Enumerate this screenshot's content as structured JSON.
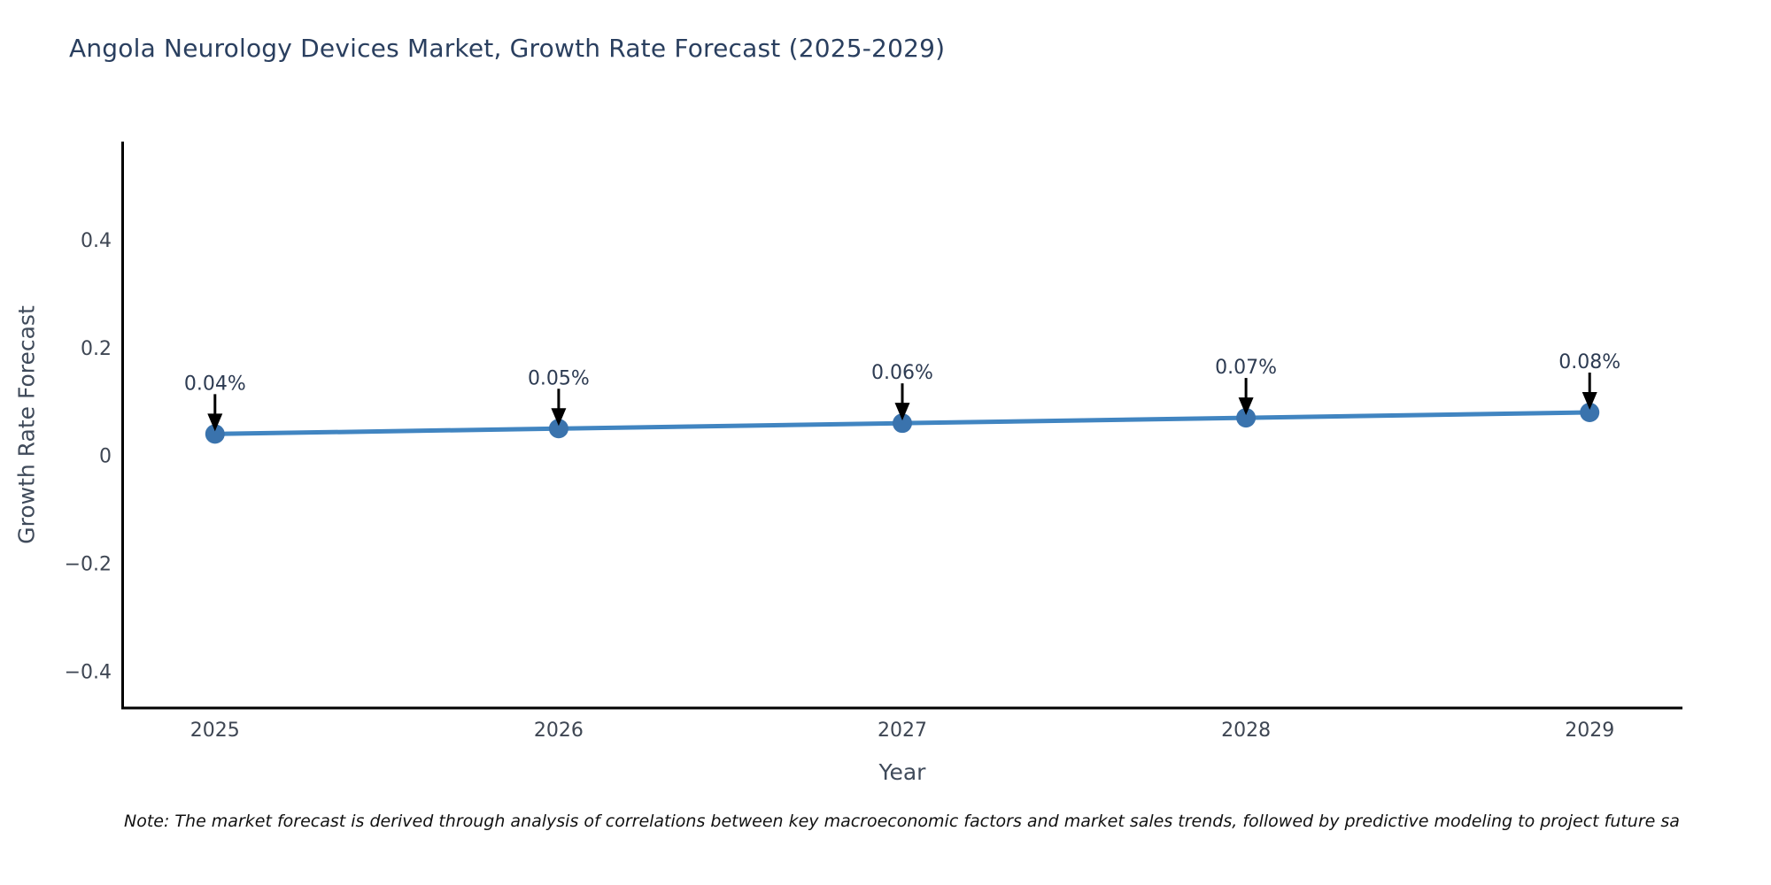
{
  "title": "Angola Neurology Devices Market, Growth Rate Forecast (2025-2029)",
  "note": {
    "text": "Note: The market forecast is derived through analysis of correlations between key macroeconomic factors and market sales trends, followed by predictive modeling to project future sa"
  },
  "chart_data": {
    "type": "line",
    "title": "Angola Neurology Devices Market, Growth Rate Forecast (2025-2029)",
    "xlabel": "Year",
    "ylabel": "Growth Rate Forecast",
    "x": [
      2025,
      2026,
      2027,
      2028,
      2029
    ],
    "y": [
      0.04,
      0.05,
      0.06,
      0.07,
      0.08
    ],
    "point_labels": [
      "0.04%",
      "0.05%",
      "0.06%",
      "0.07%",
      "0.08%"
    ],
    "xtick_values": [
      2025,
      2026,
      2027,
      2028,
      2029
    ],
    "xtick_labels": [
      "2025",
      "2026",
      "2027",
      "2028",
      "2029"
    ],
    "ytick_values": [
      0.4,
      0.2,
      0,
      -0.2,
      -0.4
    ],
    "ytick_labels": [
      "0.4",
      "0.2",
      "0",
      "−0.2",
      "−0.4"
    ],
    "xlim": [
      2024.73,
      2029.27
    ],
    "ylim": [
      -0.468,
      0.582
    ],
    "grid": false,
    "legend": "none",
    "colors": {
      "line": "#4185c1",
      "marker": "#3a73ad",
      "spine": "#000000",
      "arrow": "#000000",
      "tick_text": "#3e4653",
      "annotation_text": "#2d3b52"
    }
  }
}
